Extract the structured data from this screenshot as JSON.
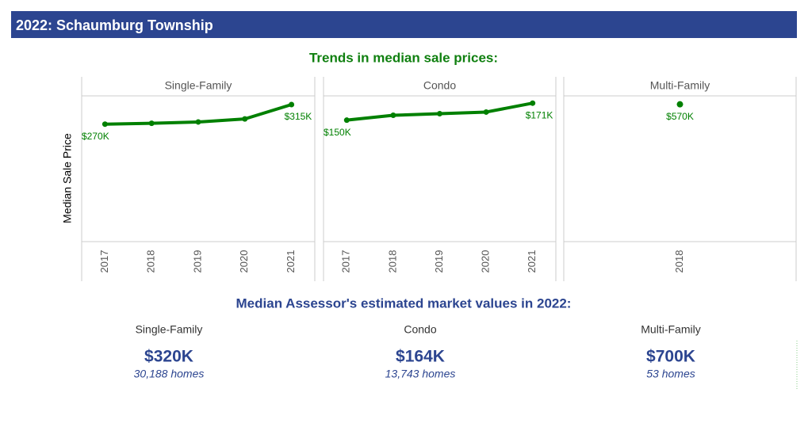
{
  "header": {
    "title": "2022: Schaumburg Township"
  },
  "trends_title": "Trends in median sale prices:",
  "chart_data": [
    {
      "type": "line",
      "title": "Single-Family",
      "ylabel": "Median Sale Price",
      "categories": [
        "2017",
        "2018",
        "2019",
        "2020",
        "2021"
      ],
      "values": [
        270,
        272,
        275,
        282,
        315
      ],
      "value_labels": [
        "$270K",
        null,
        null,
        null,
        "$315K"
      ],
      "color": "#008000",
      "ylim": [
        0,
        335
      ]
    },
    {
      "type": "line",
      "title": "Condo",
      "categories": [
        "2017",
        "2018",
        "2019",
        "2020",
        "2021"
      ],
      "values": [
        150,
        156,
        158,
        160,
        171
      ],
      "value_labels": [
        "$150K",
        null,
        null,
        null,
        "$171K"
      ],
      "color": "#008000",
      "ylim": [
        0,
        180
      ]
    },
    {
      "type": "line",
      "title": "Multi-Family",
      "categories": [
        "2018"
      ],
      "values": [
        570
      ],
      "value_labels": [
        "$570K"
      ],
      "color": "#008000",
      "ylim": [
        0,
        605
      ]
    }
  ],
  "summary": {
    "title": "Median Assessor's estimated market values in 2022:",
    "items": [
      {
        "label": "Single-Family",
        "value": "$320K",
        "homes": "30,188 homes"
      },
      {
        "label": "Condo",
        "value": "$164K",
        "homes": "13,743 homes"
      },
      {
        "label": "Multi-Family",
        "value": "$700K",
        "homes": "53 homes"
      }
    ]
  }
}
